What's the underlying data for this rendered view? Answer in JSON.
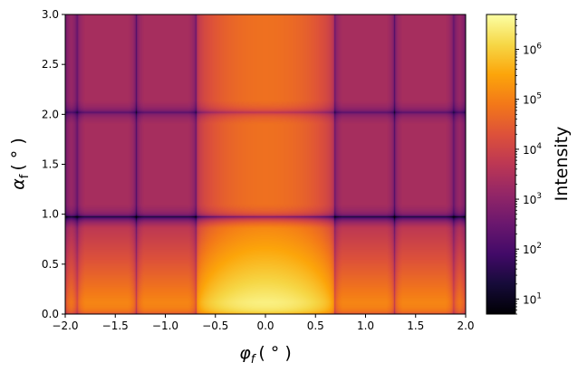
{
  "chart_data": {
    "type": "heatmap",
    "title": "",
    "xlabel_symbol": "φ",
    "xlabel_sub": "f",
    "xlabel_unit": "( ° )",
    "ylabel_symbol": "α",
    "ylabel_sub": "f",
    "ylabel_unit": "( ° )",
    "xlim": [
      -2.0,
      2.0
    ],
    "ylim": [
      0.0,
      3.0
    ],
    "x_ticks": [
      -2.0,
      -1.5,
      -1.0,
      -0.5,
      0.0,
      0.5,
      1.0,
      1.5,
      2.0
    ],
    "x_tick_labels": [
      "−2.0",
      "−1.5",
      "−1.0",
      "−0.5",
      "0.0",
      "0.5",
      "1.0",
      "1.5",
      "2.0"
    ],
    "y_ticks": [
      0.0,
      0.5,
      1.0,
      1.5,
      2.0,
      2.5,
      3.0
    ],
    "y_tick_labels": [
      "0.0",
      "0.5",
      "1.0",
      "1.5",
      "2.0",
      "2.5",
      "3.0"
    ],
    "colormap": "inferno",
    "colorbar": {
      "label": "Intensity",
      "scale": "log",
      "range": [
        5,
        5000000
      ],
      "ticks": [
        10,
        100,
        1000,
        10000,
        100000,
        1000000
      ],
      "tick_bases": [
        "10",
        "10",
        "10",
        "10",
        "10",
        "10"
      ],
      "tick_exponents": [
        "1",
        "2",
        "3",
        "4",
        "5",
        "6"
      ]
    },
    "x_minima": [
      -1.88,
      -1.29,
      -0.69,
      0.69,
      1.29,
      1.88
    ],
    "y_minima": [
      0.98,
      2.02
    ],
    "peak": {
      "x": 0.0,
      "y": 0.05,
      "intensity": 5000000
    },
    "row_lobe_peaks": [
      5000000,
      60000,
      60000
    ],
    "grid": false
  }
}
